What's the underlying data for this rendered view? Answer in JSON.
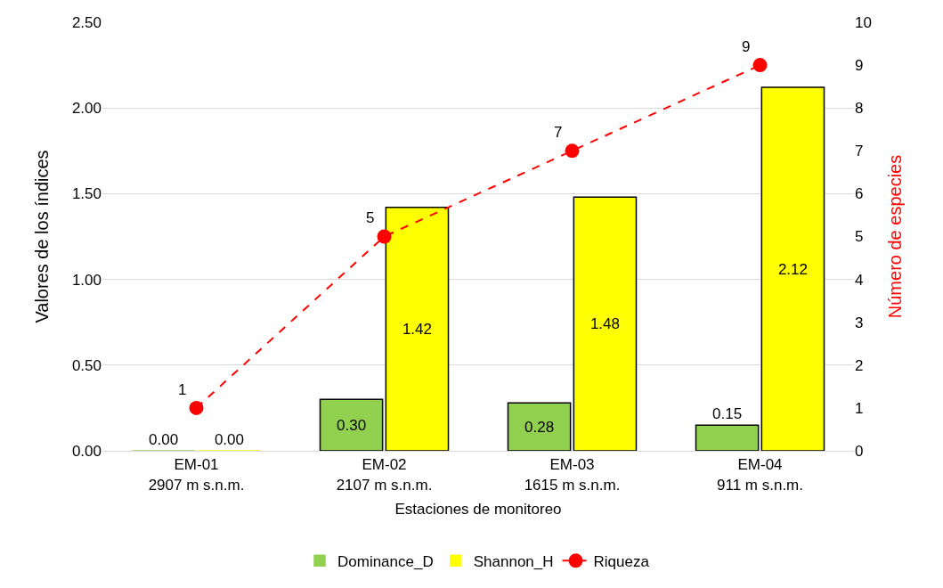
{
  "chart_data": {
    "type": "bar",
    "xlabel": "Estaciones de monitoreo",
    "ylabel": "Valores de los índices",
    "y2label": "Número de especies",
    "categories": [
      "EM-01\n2907 m s.n.m.",
      "EM-02\n2107 m s.n.m.",
      "EM-03\n1615 m s.n.m.",
      "EM-04\n911 m s.n.m."
    ],
    "series": [
      {
        "name": "Dominance_D",
        "color": "#92d050",
        "values": [
          0,
          0.3,
          0.28,
          0.15
        ],
        "value_labels": [
          "0.00",
          "0.30",
          "0.28",
          "0.15"
        ]
      },
      {
        "name": "Shannon_H",
        "color": "#ffff00",
        "values": [
          0,
          1.42,
          1.48,
          2.12
        ],
        "value_labels": [
          "0.00",
          "1.42",
          "1.48",
          "2.12"
        ]
      },
      {
        "name": "Riqueza",
        "type": "line",
        "axis": "y2",
        "color": "#ff0000",
        "line_style": "dashed",
        "marker": "circle",
        "values": [
          1,
          5,
          7,
          9
        ],
        "value_labels": [
          "1",
          "5",
          "7",
          "9"
        ]
      }
    ],
    "ylim": [
      0,
      2.5
    ],
    "yticks": [
      {
        "value": 0,
        "label": "0.00"
      },
      {
        "value": 0.5,
        "label": "0.50"
      },
      {
        "value": 1,
        "label": "1.00"
      },
      {
        "value": 1.5,
        "label": "1.50"
      },
      {
        "value": 2,
        "label": "2.00"
      },
      {
        "value": 2.5,
        "label": "2.50"
      }
    ],
    "y2lim": [
      0,
      10
    ],
    "y2ticks": [
      0,
      1,
      2,
      3,
      4,
      5,
      6,
      7,
      8,
      9,
      10
    ],
    "grid": "y",
    "legend": "bottom"
  }
}
